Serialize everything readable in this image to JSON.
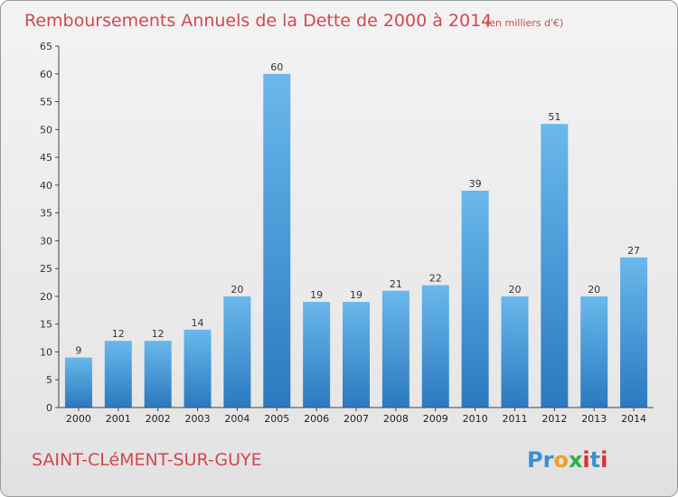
{
  "chart_data": {
    "type": "bar",
    "title": "Remboursements Annuels de la Dette de 2000 à 2014",
    "unit_note": "(en milliers d'€)",
    "categories": [
      "2000",
      "2001",
      "2002",
      "2003",
      "2004",
      "2005",
      "2006",
      "2007",
      "2008",
      "2009",
      "2010",
      "2011",
      "2012",
      "2013",
      "2014"
    ],
    "values": [
      9,
      12,
      12,
      14,
      20,
      60,
      19,
      19,
      21,
      22,
      39,
      20,
      51,
      20,
      27
    ],
    "xlabel": "",
    "ylabel": "",
    "ylim": [
      0,
      65
    ],
    "yticks": [
      0,
      5,
      10,
      15,
      20,
      25,
      30,
      35,
      40,
      45,
      50,
      55,
      60,
      65
    ],
    "grid": false,
    "legend": "none"
  },
  "footer": {
    "commune": "SAINT-CLéMENT-SUR-GUYE",
    "brand_letters": [
      "P",
      "r",
      "o",
      "x",
      "i",
      "t",
      "i"
    ]
  },
  "colors": {
    "title": "#d3474f",
    "bar_light": "#6ab8ec",
    "bar_dark": "#2b79bf",
    "brand": [
      "#3c8fd5",
      "#3c8fd5",
      "#f0a020",
      "#2fb04a",
      "#e03030",
      "#3c8fd5",
      "#e03030"
    ]
  }
}
